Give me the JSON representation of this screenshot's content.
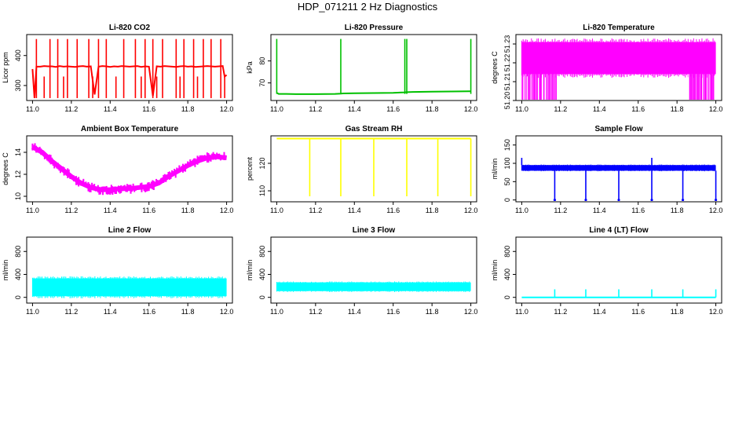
{
  "page": {
    "title": "HDP_071211  2 Hz Diagnostics"
  },
  "chart_data": [
    {
      "type": "line",
      "title": "Li-820 CO2",
      "xlabel": "",
      "ylabel": "Licor ppm",
      "color": "#ff0000",
      "xlim": [
        10.97,
        12.03
      ],
      "ylim": [
        250,
        470
      ],
      "xticks": [
        "11.0",
        "11.2",
        "11.4",
        "11.6",
        "11.8",
        "12.0"
      ],
      "yticks": [
        "300",
        "400"
      ],
      "series": [
        {
          "x": [
            11.0,
            11.01,
            11.02,
            11.04,
            11.06,
            11.08,
            11.1,
            11.12,
            11.14,
            11.16,
            11.18,
            11.2,
            11.22,
            11.24,
            11.26,
            11.28,
            11.3,
            11.32,
            11.34,
            11.36,
            11.38,
            11.4,
            11.42,
            11.44,
            11.46,
            11.48,
            11.5,
            11.52,
            11.54,
            11.56,
            11.58,
            11.6,
            11.62,
            11.64,
            11.66,
            11.68,
            11.7,
            11.72,
            11.74,
            11.76,
            11.78,
            11.8,
            11.82,
            11.84,
            11.86,
            11.88,
            11.9,
            11.92,
            11.94,
            11.96,
            11.98,
            11.99,
            12.0
          ],
          "y": [
            355,
            258,
            363,
            363,
            365,
            364,
            364,
            362,
            365,
            363,
            364,
            363,
            362,
            364,
            365,
            363,
            364,
            270,
            363,
            365,
            364,
            362,
            364,
            363,
            365,
            364,
            363,
            364,
            365,
            362,
            364,
            363,
            265,
            364,
            363,
            365,
            364,
            363,
            362,
            364,
            365,
            363,
            364,
            362,
            363,
            364,
            365,
            364,
            363,
            364,
            365,
            330,
            335
          ]
        }
      ],
      "spikes_up": [
        11.02,
        11.09,
        11.13,
        11.18,
        11.23,
        11.29,
        11.34,
        11.38,
        11.47,
        11.53,
        11.58,
        11.62,
        11.67,
        11.74,
        11.78,
        11.83,
        11.88,
        11.92,
        11.97
      ],
      "spike_top": 455,
      "spikes_down": [
        11.06,
        11.16,
        11.31,
        11.43,
        11.56,
        11.64,
        11.76,
        11.85,
        11.99
      ],
      "spike_bottom": 330
    },
    {
      "type": "line",
      "title": "Li-820 Pressure",
      "xlabel": "",
      "ylabel": "kPa",
      "color": "#00c000",
      "xlim": [
        10.97,
        12.03
      ],
      "ylim": [
        62,
        92
      ],
      "xticks": [
        "11.0",
        "11.2",
        "11.4",
        "11.6",
        "11.8",
        "12.0"
      ],
      "yticks": [
        "70",
        "80"
      ],
      "series": [
        {
          "x": [
            11.0,
            11.01,
            11.05,
            11.1,
            11.2,
            11.3,
            11.33,
            11.34,
            11.4,
            11.5,
            11.6,
            11.66,
            11.67,
            11.7,
            11.8,
            11.9,
            11.99,
            12.0
          ],
          "y": [
            65.5,
            65.0,
            65.0,
            64.9,
            64.9,
            65.0,
            65.1,
            65.2,
            65.3,
            65.4,
            65.5,
            65.7,
            65.8,
            65.9,
            66.0,
            66.1,
            66.2,
            66.2
          ]
        }
      ],
      "spikes_up": [
        11.0,
        11.33,
        11.66,
        11.67,
        12.0
      ],
      "spike_top": 90
    },
    {
      "type": "line",
      "title": "Li-820 Temperature",
      "xlabel": "",
      "ylabel": "degrees C",
      "color": "#ff00ff",
      "xlim": [
        10.97,
        12.03
      ],
      "ylim": [
        51.2,
        51.235
      ],
      "xticks": [
        "11.0",
        "11.2",
        "11.4",
        "11.6",
        "11.8",
        "12.0"
      ],
      "yticks": [
        "51.20",
        "51.21",
        "51.22",
        "51.23"
      ],
      "band": [
        51.214,
        51.231
      ],
      "gaps": [
        11.02,
        11.05,
        11.07,
        11.09,
        11.11,
        11.13,
        11.15,
        11.17,
        11.86,
        11.88,
        11.9,
        11.92,
        11.94,
        11.96,
        11.98
      ]
    },
    {
      "type": "line",
      "title": "Ambient Box Temperature",
      "xlabel": "",
      "ylabel": "degrees C",
      "color": "#ff00ff",
      "xlim": [
        10.97,
        12.03
      ],
      "ylim": [
        9.5,
        15.5
      ],
      "xticks": [
        "11.0",
        "11.2",
        "11.4",
        "11.6",
        "11.8",
        "12.0"
      ],
      "yticks": [
        "10",
        "12",
        "14"
      ],
      "series": [
        {
          "x": [
            11.0,
            11.05,
            11.1,
            11.15,
            11.2,
            11.25,
            11.3,
            11.35,
            11.4,
            11.45,
            11.5,
            11.55,
            11.6,
            11.65,
            11.7,
            11.75,
            11.8,
            11.85,
            11.9,
            11.95,
            12.0
          ],
          "y": [
            14.5,
            14.0,
            13.2,
            12.5,
            11.8,
            11.2,
            10.8,
            10.6,
            10.6,
            10.7,
            10.7,
            10.8,
            10.9,
            11.2,
            11.8,
            12.3,
            12.8,
            13.2,
            13.5,
            13.6,
            13.5
          ]
        }
      ],
      "noise": 0.5
    },
    {
      "type": "line",
      "title": "Gas Stream RH",
      "xlabel": "",
      "ylabel": "percent",
      "color": "#ffff00",
      "xlim": [
        10.97,
        12.03
      ],
      "ylim": [
        106,
        130
      ],
      "xticks": [
        "11.0",
        "11.2",
        "11.4",
        "11.6",
        "11.8",
        "12.0"
      ],
      "yticks": [
        "110",
        "120"
      ],
      "baseline": 129,
      "spikes_down": [
        11.17,
        11.33,
        11.5,
        11.67,
        11.83,
        12.0
      ],
      "spike_bottom": 108
    },
    {
      "type": "line",
      "title": "Sample Flow",
      "xlabel": "",
      "ylabel": "ml/min",
      "color": "#0000ff",
      "xlim": [
        10.97,
        12.03
      ],
      "ylim": [
        -5,
        175
      ],
      "xticks": [
        "11.0",
        "11.2",
        "11.4",
        "11.6",
        "11.8",
        "12.0"
      ],
      "yticks": [
        "0",
        "50",
        "100",
        "150"
      ],
      "band": [
        80,
        95
      ],
      "spikes_down": [
        11.17,
        11.33,
        11.5,
        11.67,
        11.83,
        12.0
      ],
      "spike_bottom": 0,
      "spikes_up": [
        11.0,
        11.67
      ],
      "spike_top": 115
    },
    {
      "type": "area",
      "title": "Line 2 Flow",
      "xlabel": "",
      "ylabel": "ml/min",
      "color": "#00ffff",
      "xlim": [
        10.97,
        12.03
      ],
      "ylim": [
        -100,
        1050
      ],
      "xticks": [
        "11.0",
        "11.2",
        "11.4",
        "11.6",
        "11.8",
        "12.0"
      ],
      "yticks": [
        "0",
        "400",
        "800"
      ],
      "band": [
        20,
        330
      ],
      "gaps": [
        11.17,
        11.33,
        11.5,
        11.67,
        11.83
      ]
    },
    {
      "type": "area",
      "title": "Line 3 Flow",
      "xlabel": "",
      "ylabel": "ml/min",
      "color": "#00ffff",
      "xlim": [
        10.97,
        12.03
      ],
      "ylim": [
        -100,
        1050
      ],
      "xticks": [
        "11.0",
        "11.2",
        "11.4",
        "11.6",
        "11.8",
        "12.0"
      ],
      "yticks": [
        "0",
        "400",
        "800"
      ],
      "band": [
        110,
        260
      ],
      "gaps": [
        11.17,
        11.33,
        11.5,
        11.67,
        11.83
      ]
    },
    {
      "type": "line",
      "title": "Line 4 (LT) Flow",
      "xlabel": "",
      "ylabel": "ml/min",
      "color": "#00ffff",
      "xlim": [
        10.97,
        12.03
      ],
      "ylim": [
        -100,
        1050
      ],
      "xticks": [
        "11.0",
        "11.2",
        "11.4",
        "11.6",
        "11.8",
        "12.0"
      ],
      "yticks": [
        "0",
        "400",
        "800"
      ],
      "baseline": 0,
      "spikes_up": [
        11.17,
        11.33,
        11.5,
        11.67,
        11.83,
        12.0
      ],
      "spike_top": 140
    }
  ]
}
